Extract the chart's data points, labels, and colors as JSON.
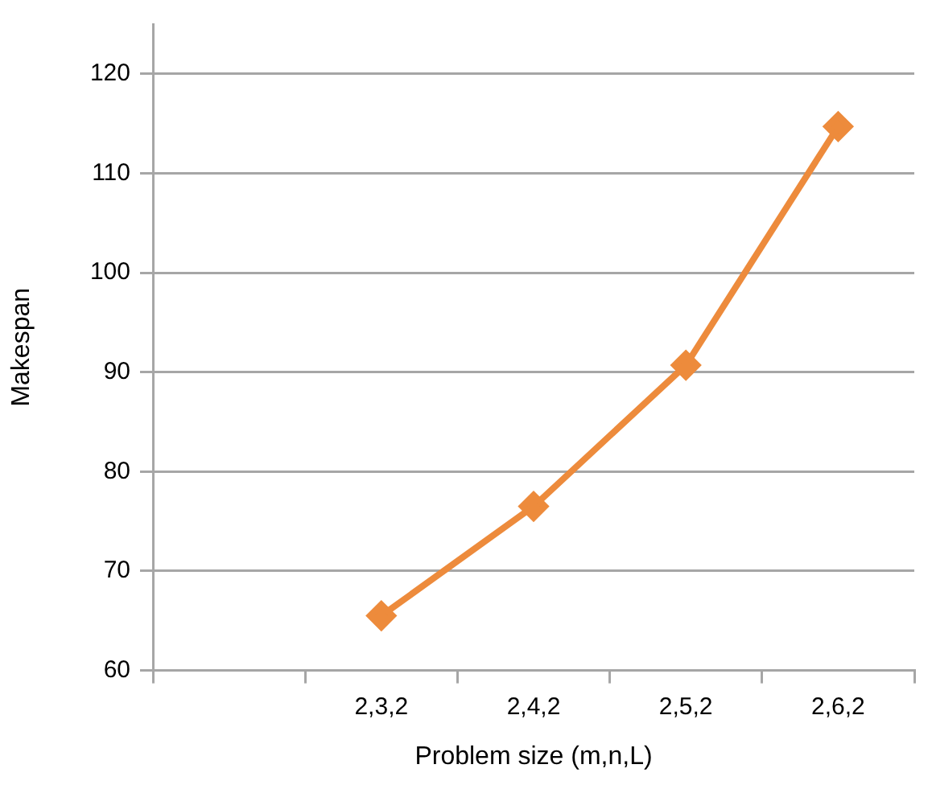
{
  "chart_data": {
    "type": "line",
    "xlabel": "Problem size (m,n,L)",
    "ylabel": "Makespan",
    "categories": [
      null,
      "2,3,2",
      "2,4,2",
      "2,5,2",
      "2,6,2"
    ],
    "series": [
      {
        "color": "#ed8b3c",
        "values": [
          null,
          65.5,
          76.5,
          90.7,
          114.7
        ]
      }
    ],
    "ylim": [
      60,
      125
    ],
    "yticks": [
      60,
      70,
      80,
      90,
      100,
      110,
      120
    ],
    "grid": "y",
    "marker": "diamond",
    "line_style": "solid",
    "legend": false
  }
}
